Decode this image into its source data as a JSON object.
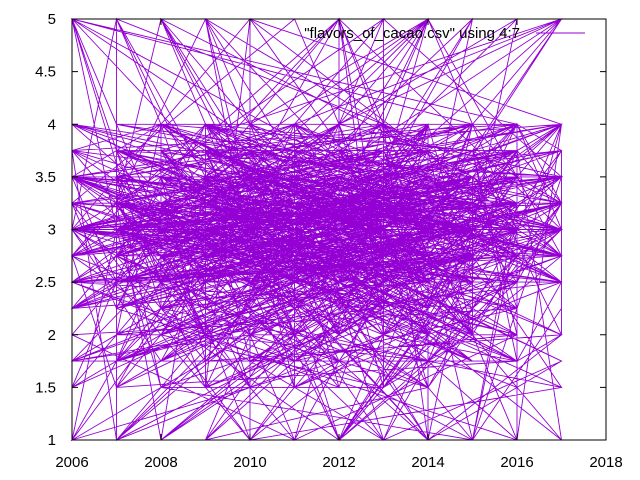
{
  "chart_data": {
    "type": "line",
    "title": "",
    "xlabel": "",
    "ylabel": "",
    "xlim": [
      2006,
      2018
    ],
    "ylim": [
      1,
      5
    ],
    "grid": false,
    "legend_position": "top-right",
    "x_ticks": [
      "2006",
      "2008",
      "2010",
      "2012",
      "2014",
      "2016",
      "2018"
    ],
    "y_ticks": [
      "1",
      "1.5",
      "2",
      "2.5",
      "3",
      "3.5",
      "4",
      "4.5",
      "5"
    ],
    "series": [
      {
        "name": "\"flavors_of_cacao.csv\" using 4:7",
        "color": "#9400d3",
        "x_values": [
          2006,
          2007,
          2008,
          2009,
          2010,
          2011,
          2012,
          2013,
          2014,
          2015,
          2016,
          2017
        ],
        "y_values": [
          3.0,
          3.0,
          3.0,
          3.0,
          3.0,
          3.0,
          3.0,
          3.0,
          3.0,
          3.0,
          3.0,
          3.0
        ]
      }
    ]
  }
}
